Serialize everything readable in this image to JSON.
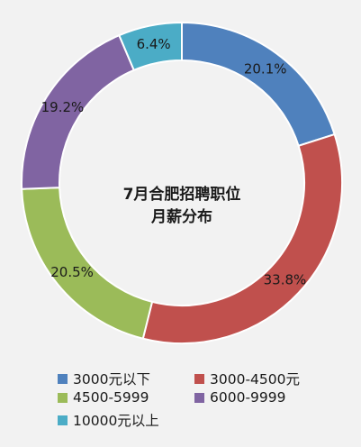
{
  "chart_data": {
    "type": "pie",
    "title": "7月合肥招聘职位月薪分布",
    "title_lines": [
      "7月合肥招聘职位",
      "月薪分布"
    ],
    "series": [
      {
        "name": "3000元以下",
        "value": 20.1,
        "label": "20.1%",
        "color": "#4f81bd"
      },
      {
        "name": "3000-4500元",
        "value": 33.8,
        "label": "33.8%",
        "color": "#c0504d"
      },
      {
        "name": "4500-5999",
        "value": 20.5,
        "label": "20.5%",
        "color": "#9bbb59"
      },
      {
        "name": "6000-9999",
        "value": 19.2,
        "label": "19.2%",
        "color": "#8064a2"
      },
      {
        "name": "10000元以上",
        "value": 6.4,
        "label": "6.4%",
        "color": "#4bacc6"
      }
    ],
    "legend_position": "bottom",
    "donut": true
  }
}
